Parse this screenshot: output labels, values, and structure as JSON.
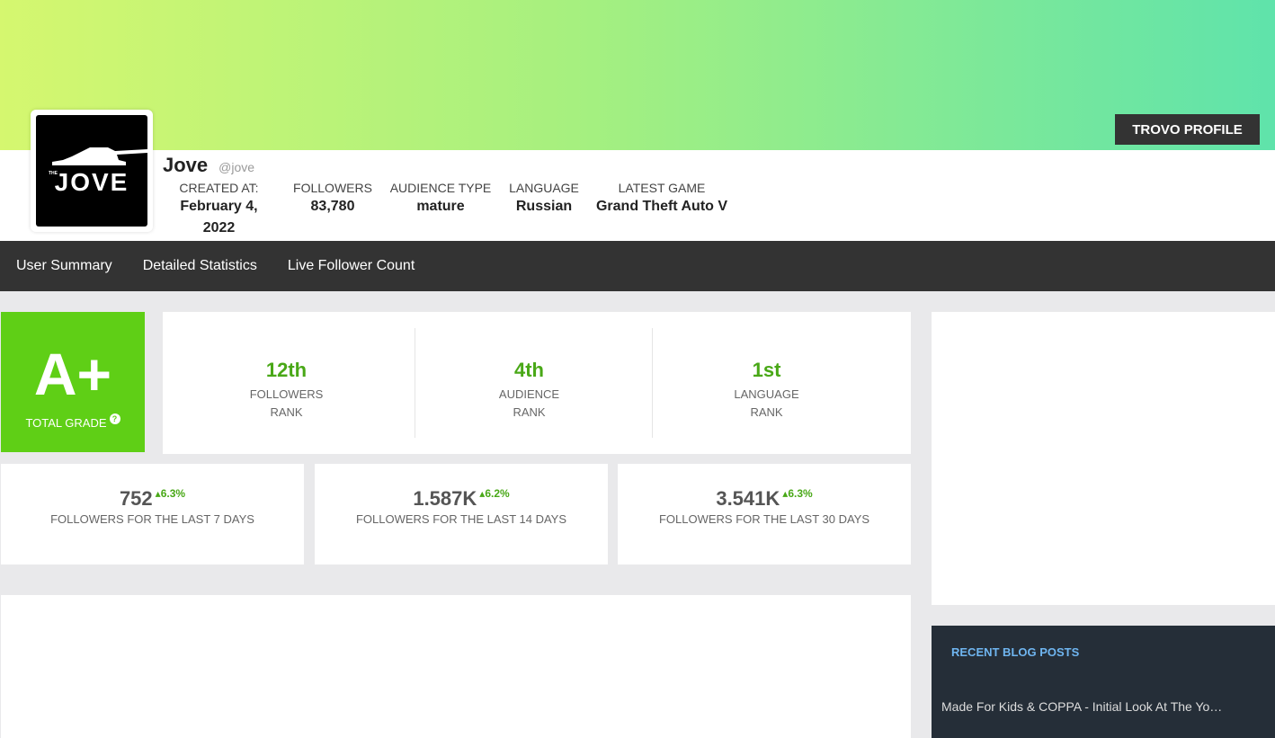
{
  "header": {
    "trovo_button": "TROVO PROFILE",
    "brand_colors": {
      "banner_start": "#d5f76f",
      "banner_end": "#5fe3ab"
    }
  },
  "profile": {
    "name": "Jove",
    "handle": "@jove",
    "avatar_text": "JOVE",
    "avatar_small": "THE",
    "meta": [
      {
        "label": "CREATED AT:",
        "value": "February 4, 2022"
      },
      {
        "label": "FOLLOWERS",
        "value": "83,780"
      },
      {
        "label": "AUDIENCE TYPE",
        "value": "mature"
      },
      {
        "label": "LANGUAGE",
        "value": "Russian"
      },
      {
        "label": "LATEST GAME",
        "value": "Grand Theft Auto V"
      }
    ]
  },
  "nav": {
    "items": [
      "User Summary",
      "Detailed Statistics",
      "Live Follower Count"
    ]
  },
  "grade": {
    "letter": "A+",
    "label": "TOTAL GRADE",
    "help": "?",
    "color": "#5fcf16"
  },
  "ranks": [
    {
      "value": "12th",
      "label1": "FOLLOWERS",
      "label2": "RANK"
    },
    {
      "value": "4th",
      "label1": "AUDIENCE",
      "label2": "RANK"
    },
    {
      "value": "1st",
      "label1": "LANGUAGE",
      "label2": "RANK"
    }
  ],
  "follower_stats": [
    {
      "value": "752",
      "delta": "6.3%",
      "label": "FOLLOWERS FOR THE LAST 7 DAYS"
    },
    {
      "value": "1.587K",
      "delta": "6.2%",
      "label": "FOLLOWERS FOR THE LAST 14 DAYS"
    },
    {
      "value": "3.541K",
      "delta": "6.3%",
      "label": "FOLLOWERS FOR THE LAST 30 DAYS"
    }
  ],
  "blog": {
    "title": "RECENT BLOG POSTS",
    "posts": [
      "Made For Kids & COPPA - Initial Look At The Yo…"
    ]
  }
}
